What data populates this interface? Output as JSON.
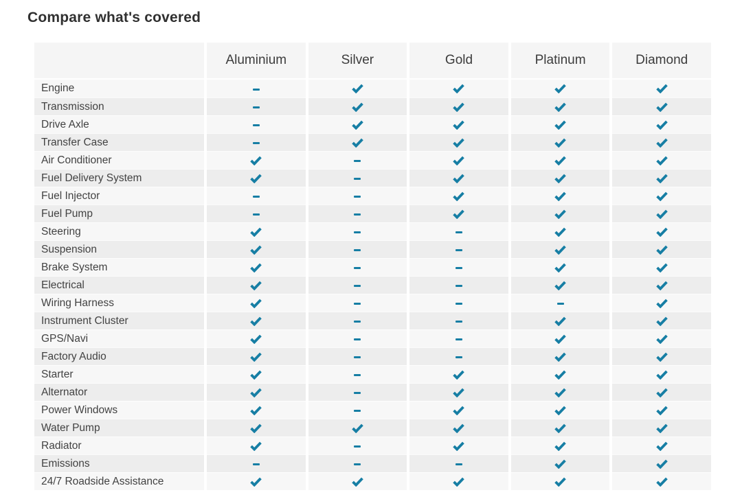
{
  "page": {
    "title": "Compare what's covered"
  },
  "colors": {
    "accent": "#167ea4",
    "header_bg": "#f5f5f5",
    "row_odd_bg": "#f7f7f7",
    "row_even_bg": "#ededed",
    "label_text": "#424242",
    "header_text": "#3c3c3c",
    "title_text": "#303030"
  },
  "icons": {
    "covered": "check-icon",
    "not_covered": "dash-icon"
  },
  "table": {
    "columns": [
      "Aluminium",
      "Silver",
      "Gold",
      "Platinum",
      "Diamond"
    ],
    "rows": [
      {
        "label": "Engine",
        "values": [
          "dash",
          "check",
          "check",
          "check",
          "check"
        ]
      },
      {
        "label": "Transmission",
        "values": [
          "dash",
          "check",
          "check",
          "check",
          "check"
        ]
      },
      {
        "label": "Drive Axle",
        "values": [
          "dash",
          "check",
          "check",
          "check",
          "check"
        ]
      },
      {
        "label": "Transfer Case",
        "values": [
          "dash",
          "check",
          "check",
          "check",
          "check"
        ]
      },
      {
        "label": "Air Conditioner",
        "values": [
          "check",
          "dash",
          "check",
          "check",
          "check"
        ]
      },
      {
        "label": "Fuel Delivery System",
        "values": [
          "check",
          "dash",
          "check",
          "check",
          "check"
        ]
      },
      {
        "label": "Fuel Injector",
        "values": [
          "dash",
          "dash",
          "check",
          "check",
          "check"
        ]
      },
      {
        "label": "Fuel Pump",
        "values": [
          "dash",
          "dash",
          "check",
          "check",
          "check"
        ]
      },
      {
        "label": "Steering",
        "values": [
          "check",
          "dash",
          "dash",
          "check",
          "check"
        ]
      },
      {
        "label": "Suspension",
        "values": [
          "check",
          "dash",
          "dash",
          "check",
          "check"
        ]
      },
      {
        "label": "Brake System",
        "values": [
          "check",
          "dash",
          "dash",
          "check",
          "check"
        ]
      },
      {
        "label": "Electrical",
        "values": [
          "check",
          "dash",
          "dash",
          "check",
          "check"
        ]
      },
      {
        "label": "Wiring Harness",
        "values": [
          "check",
          "dash",
          "dash",
          "dash",
          "check"
        ]
      },
      {
        "label": "Instrument Cluster",
        "values": [
          "check",
          "dash",
          "dash",
          "check",
          "check"
        ]
      },
      {
        "label": "GPS/Navi",
        "values": [
          "check",
          "dash",
          "dash",
          "check",
          "check"
        ]
      },
      {
        "label": "Factory Audio",
        "values": [
          "check",
          "dash",
          "dash",
          "check",
          "check"
        ]
      },
      {
        "label": "Starter",
        "values": [
          "check",
          "dash",
          "check",
          "check",
          "check"
        ]
      },
      {
        "label": "Alternator",
        "values": [
          "check",
          "dash",
          "check",
          "check",
          "check"
        ]
      },
      {
        "label": "Power Windows",
        "values": [
          "check",
          "dash",
          "check",
          "check",
          "check"
        ]
      },
      {
        "label": "Water Pump",
        "values": [
          "check",
          "check",
          "check",
          "check",
          "check"
        ]
      },
      {
        "label": "Radiator",
        "values": [
          "check",
          "dash",
          "check",
          "check",
          "check"
        ]
      },
      {
        "label": "Emissions",
        "values": [
          "dash",
          "dash",
          "dash",
          "check",
          "check"
        ]
      },
      {
        "label": "24/7 Roadside Assistance",
        "values": [
          "check",
          "check",
          "check",
          "check",
          "check"
        ]
      }
    ]
  }
}
